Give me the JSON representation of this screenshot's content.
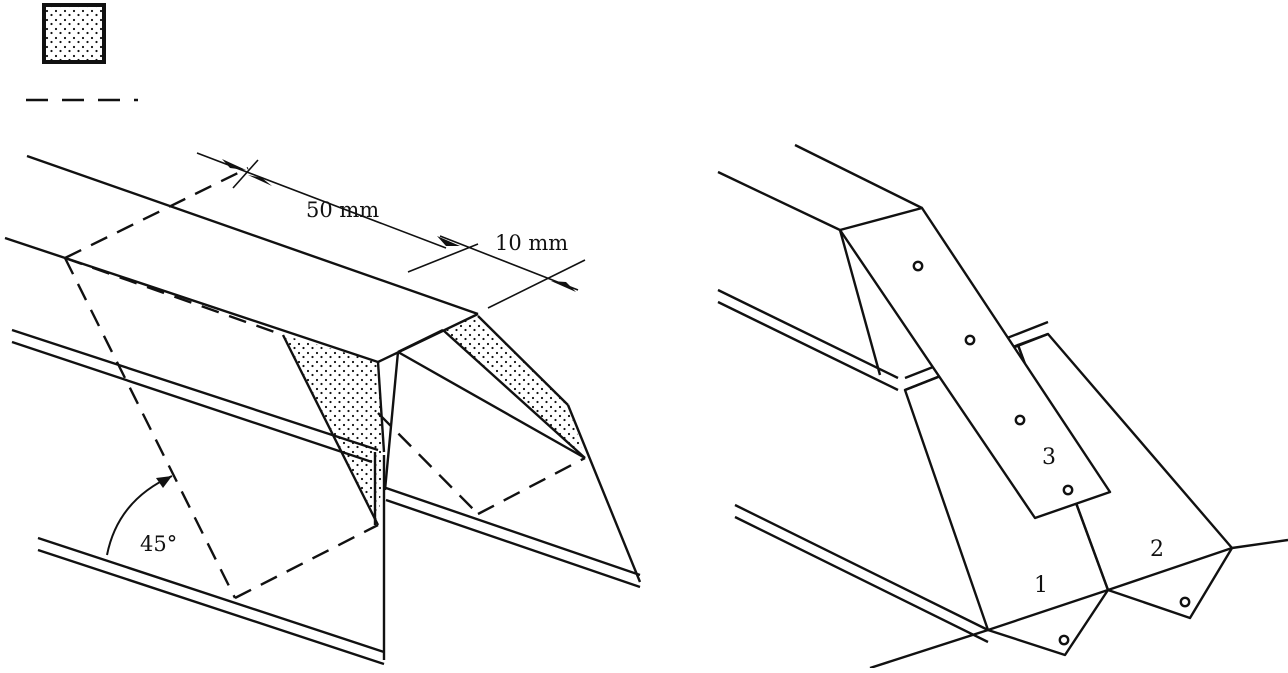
{
  "legend": {
    "hatched_swatch_icon": "dotted-square-icon",
    "dashed_line_icon": "dashed-line-icon"
  },
  "left_figure": {
    "dimension_50": "50 mm",
    "dimension_10": "10 mm",
    "angle": "45°"
  },
  "right_figure": {
    "part_1": "1",
    "part_2": "2",
    "part_3": "3"
  },
  "colors": {
    "ink": "#111111",
    "background": "#ffffff"
  }
}
